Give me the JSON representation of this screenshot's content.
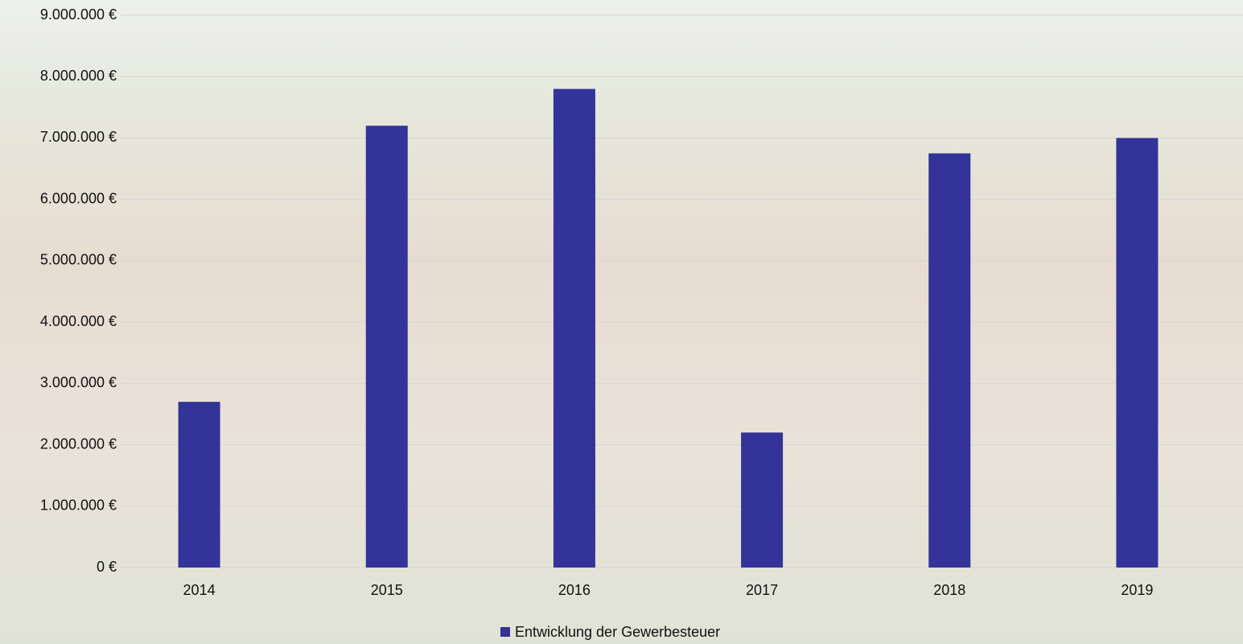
{
  "chart_data": {
    "type": "bar",
    "categories": [
      "2014",
      "2015",
      "2016",
      "2017",
      "2018",
      "2019"
    ],
    "series": [
      {
        "name": "Entwicklung der Gewerbesteuer",
        "color": "#333399",
        "values": [
          2700000,
          7200000,
          7800000,
          2200000,
          6750000,
          7000000
        ]
      }
    ],
    "ylim": [
      0,
      9000000
    ],
    "yticks": [
      {
        "value": 0,
        "label": "0 €"
      },
      {
        "value": 1000000,
        "label": "1.000.000 €"
      },
      {
        "value": 2000000,
        "label": "2.000.000 €"
      },
      {
        "value": 3000000,
        "label": "3.000.000 €"
      },
      {
        "value": 4000000,
        "label": "4.000.000 €"
      },
      {
        "value": 5000000,
        "label": "5.000.000 €"
      },
      {
        "value": 6000000,
        "label": "6.000.000 €"
      },
      {
        "value": 7000000,
        "label": "7.000.000 €"
      },
      {
        "value": 8000000,
        "label": "8.000.000 €"
      },
      {
        "value": 9000000,
        "label": "9.000.000 €"
      }
    ],
    "grid": true,
    "legend": "bottom"
  }
}
